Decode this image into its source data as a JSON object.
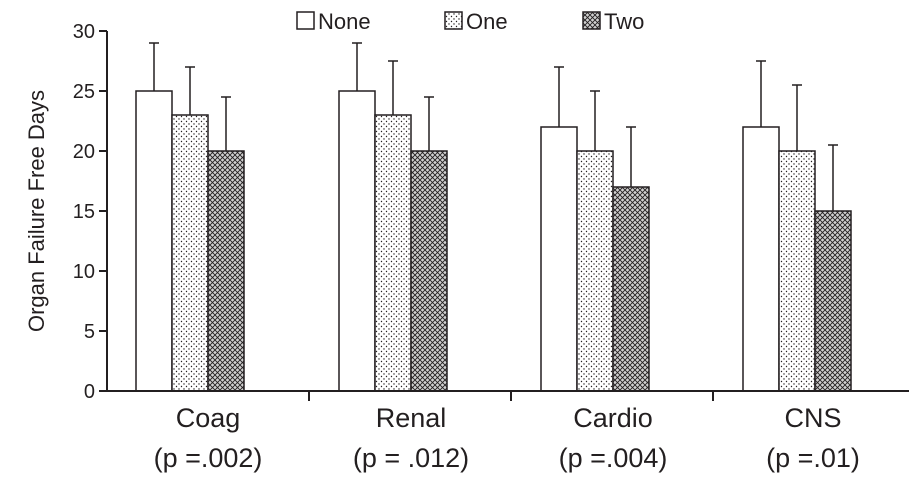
{
  "chart_data": {
    "type": "bar",
    "categories": [
      "Coag",
      "Renal",
      "Cardio",
      "CNS"
    ],
    "category_sublabels": [
      "(p =.002)",
      "(p = .012)",
      "(p =.004)",
      "(p =.01)"
    ],
    "series": [
      {
        "name": "None",
        "values": [
          25,
          25,
          22,
          22
        ],
        "error_upper": [
          29,
          29,
          27,
          27.5
        ],
        "fill": "plain"
      },
      {
        "name": "One",
        "values": [
          23,
          23,
          20,
          20
        ],
        "error_upper": [
          27,
          27.5,
          25,
          25.5
        ],
        "fill": "dotted"
      },
      {
        "name": "Two",
        "values": [
          20,
          20,
          17,
          15
        ],
        "error_upper": [
          24.5,
          24.5,
          22,
          20.5
        ],
        "fill": "crosshatch"
      }
    ],
    "title": "",
    "xlabel": "",
    "ylabel": "Organ Failure Free Days",
    "ylim": [
      0,
      30
    ],
    "yticks": [
      0,
      5,
      10,
      15,
      20,
      25,
      30
    ],
    "grid": false,
    "legend": "top-center",
    "colors": {
      "ink": "#231f20",
      "background": "#ffffff"
    }
  }
}
